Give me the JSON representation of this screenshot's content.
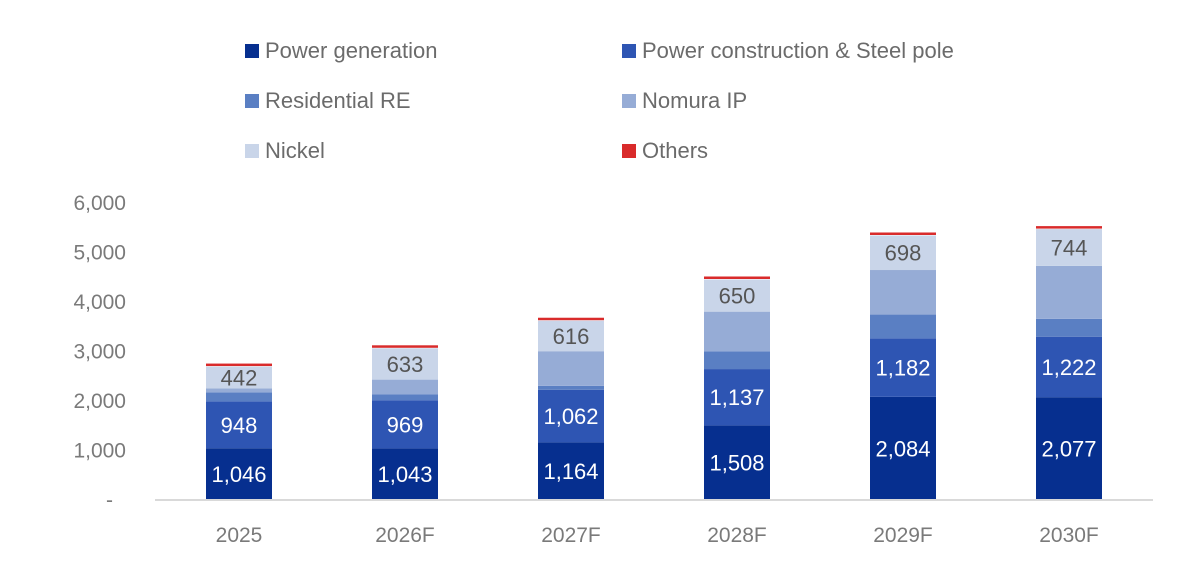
{
  "chart_data": {
    "type": "bar",
    "stacked": true,
    "title": "",
    "xlabel": "",
    "ylabel": "",
    "ylim": [
      0,
      6000
    ],
    "yticks": [
      0,
      1000,
      2000,
      3000,
      4000,
      5000,
      6000
    ],
    "ytick_labels": [
      "-",
      "1,000",
      "2,000",
      "3,000",
      "4,000",
      "5,000",
      "6,000"
    ],
    "grid": false,
    "legend_position": "top",
    "categories": [
      "2025",
      "2026F",
      "2027F",
      "2028F",
      "2029F",
      "2030F"
    ],
    "series": [
      {
        "name": "Power generation",
        "color": "#062f8f",
        "values": [
          1046,
          1043,
          1164,
          1508,
          2084,
          2077
        ],
        "labels": [
          "1,046",
          "1,043",
          "1,164",
          "1,508",
          "2,084",
          "2,077"
        ],
        "label_color": "#ffffff"
      },
      {
        "name": "Power construction & Steel pole",
        "color": "#2e55b3",
        "values": [
          948,
          969,
          1062,
          1137,
          1182,
          1222
        ],
        "labels": [
          "948",
          "969",
          "1,062",
          "1,137",
          "1,182",
          "1,222"
        ],
        "label_color": "#ffffff"
      },
      {
        "name": "Residential RE",
        "color": "#5a7fc3",
        "values": [
          180,
          120,
          80,
          360,
          480,
          360
        ],
        "labels": null,
        "label_color": null
      },
      {
        "name": "Nomura IP",
        "color": "#96acd6",
        "values": [
          80,
          300,
          700,
          800,
          900,
          1070
        ],
        "labels": null,
        "label_color": null
      },
      {
        "name": "Nickel",
        "color": "#c9d5e9",
        "values": [
          442,
          633,
          616,
          650,
          698,
          744
        ],
        "labels": [
          "442",
          "633",
          "616",
          "650",
          "698",
          "744"
        ],
        "label_color": "#555555"
      },
      {
        "name": "Others",
        "color": "#d92b2b",
        "values": [
          40,
          40,
          40,
          40,
          40,
          40
        ],
        "labels": null,
        "label_color": null
      }
    ]
  }
}
